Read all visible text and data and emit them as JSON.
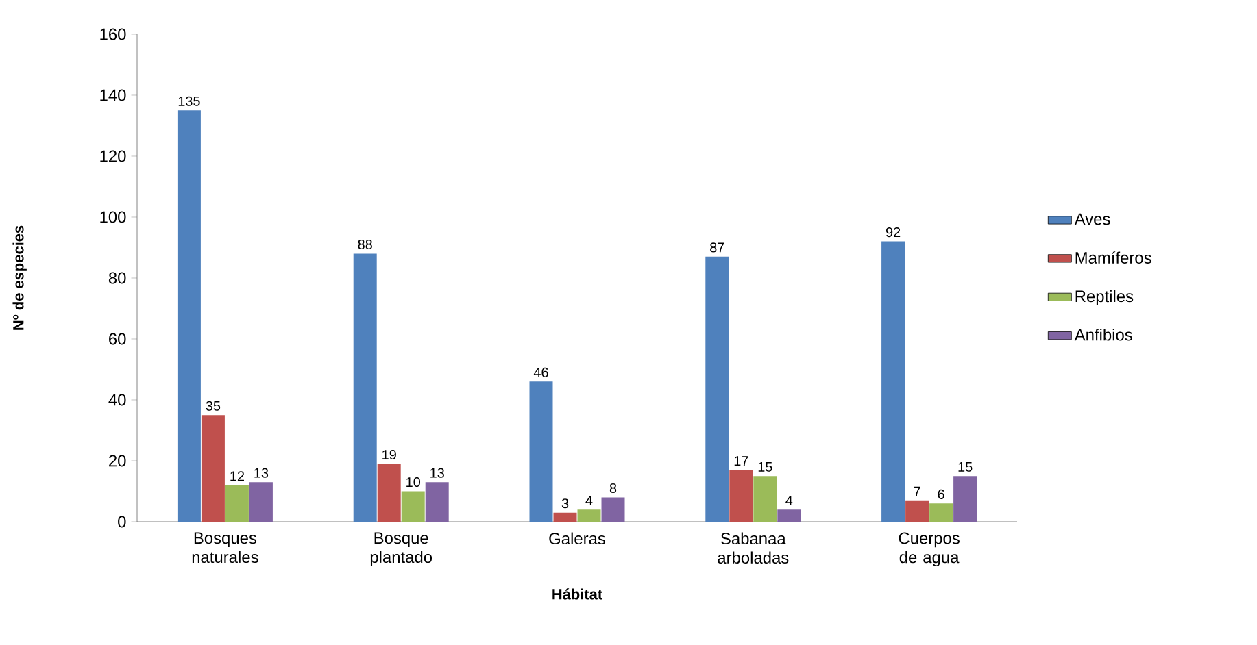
{
  "chart_data": {
    "type": "bar",
    "xlabel": "Hábitat",
    "ylabel": "Nº de especies",
    "categories": [
      "Bosques naturales",
      "Bosque plantado",
      "Galeras",
      "Sabanaa arboladas",
      "Cuerpos de agua"
    ],
    "series": [
      {
        "name": "Aves",
        "color": "#4f81bd",
        "values": [
          135,
          88,
          46,
          87,
          92
        ]
      },
      {
        "name": "Mamíferos",
        "color": "#c0504d",
        "values": [
          35,
          19,
          3,
          17,
          7
        ]
      },
      {
        "name": "Reptiles",
        "color": "#9bbb59",
        "values": [
          12,
          10,
          4,
          15,
          6
        ]
      },
      {
        "name": "Anfibios",
        "color": "#8064a2",
        "values": [
          13,
          13,
          8,
          4,
          15
        ]
      }
    ],
    "ylim": [
      0,
      160
    ],
    "yticks": [
      0,
      20,
      40,
      60,
      80,
      100,
      120,
      140,
      160
    ],
    "data_labels": true,
    "legend": "right",
    "grid": false
  }
}
